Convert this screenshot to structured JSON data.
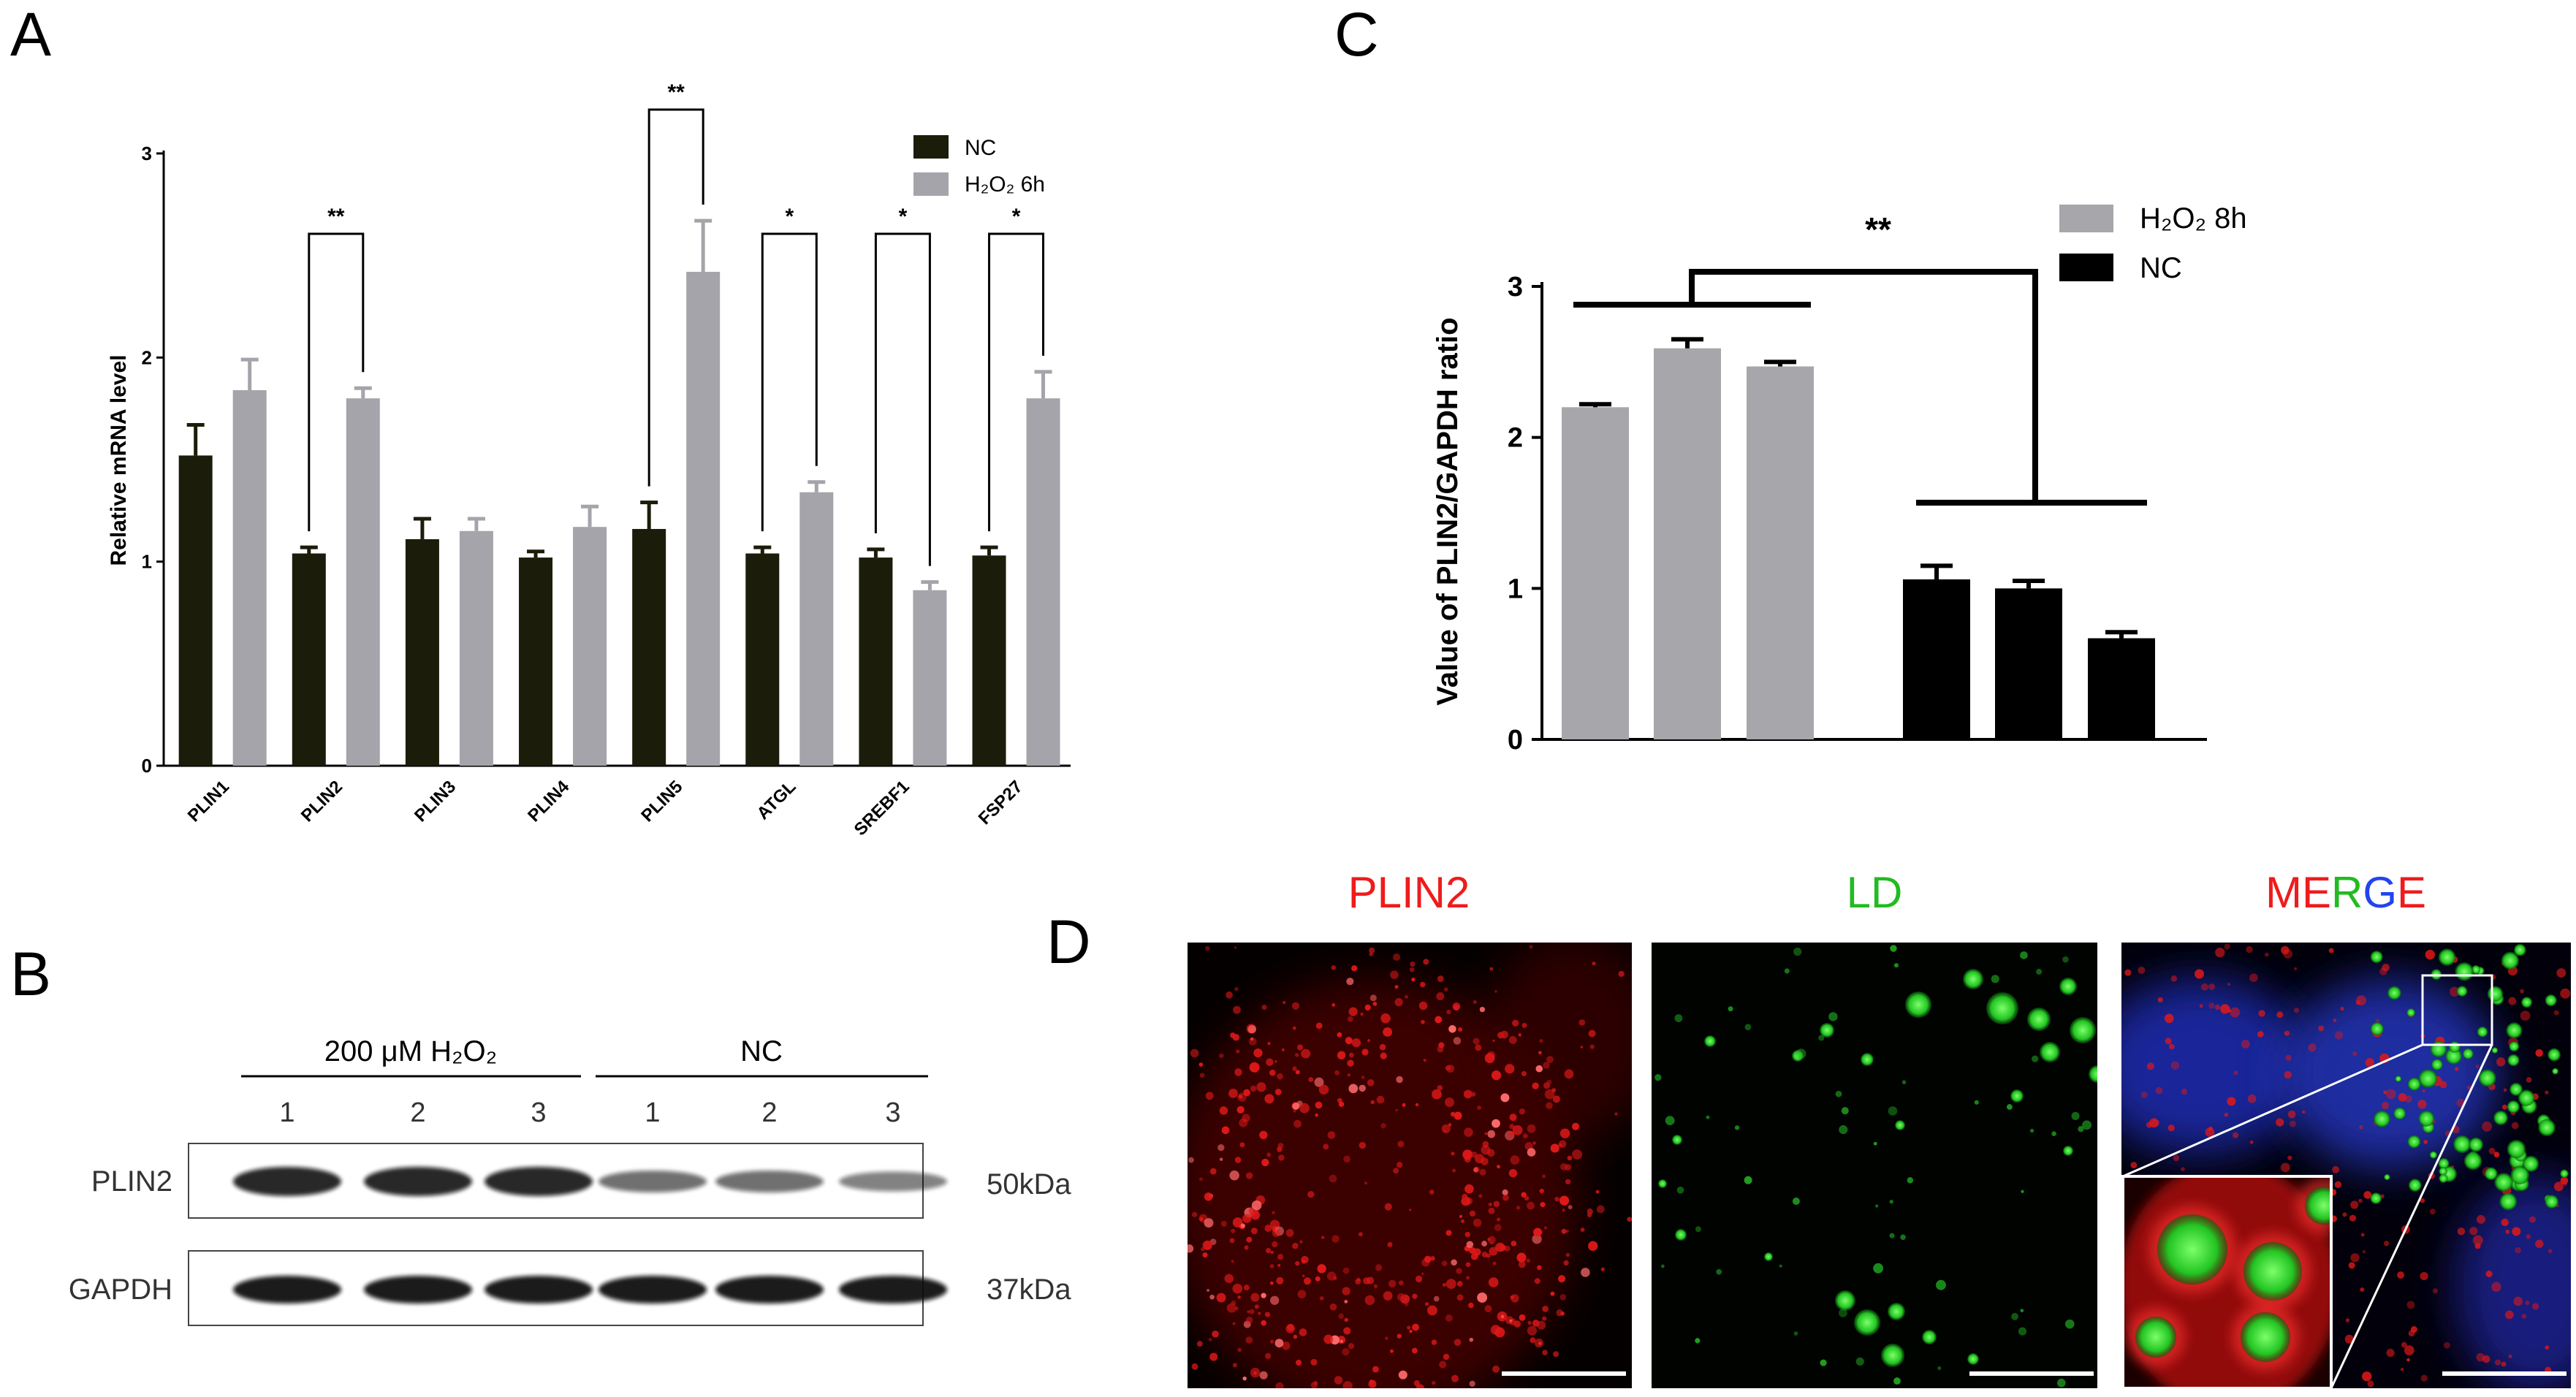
{
  "panels": {
    "a": "A",
    "b": "B",
    "c": "C",
    "d": "D"
  },
  "chart_data": [
    {
      "type": "bar",
      "panel": "A",
      "ylabel": "Relative mRNA level",
      "ylim": [
        0,
        3
      ],
      "yticks": [
        "0",
        "1",
        "2",
        "3"
      ],
      "categories": [
        "PLIN1",
        "PLIN2",
        "PLIN3",
        "PLIN4",
        "PLIN5",
        "ATGL",
        "SREBF1",
        "FSP27"
      ],
      "series": [
        {
          "name": "NC",
          "color": "#1c1c0a",
          "values": [
            1.52,
            1.04,
            1.11,
            1.02,
            1.16,
            1.04,
            1.02,
            1.03
          ],
          "errors": [
            0.15,
            0.03,
            0.1,
            0.03,
            0.13,
            0.03,
            0.04,
            0.04
          ]
        },
        {
          "name": "H₂O₂ 6h",
          "color": "#a4a4aa",
          "values": [
            1.84,
            1.8,
            1.15,
            1.17,
            2.42,
            1.34,
            0.86,
            1.8
          ],
          "errors": [
            0.15,
            0.05,
            0.06,
            0.1,
            0.25,
            0.05,
            0.04,
            0.13
          ]
        }
      ],
      "significance": [
        "",
        "**",
        "",
        "",
        "**",
        "*",
        "*",
        "*"
      ],
      "legend_position": "top-right"
    },
    {
      "type": "bar",
      "panel": "C",
      "ylabel": "Value of PLIN2/GAPDH ratio",
      "ylim": [
        0,
        3
      ],
      "yticks": [
        "0",
        "1",
        "2",
        "3"
      ],
      "series": [
        {
          "name": "H₂O₂ 8h",
          "color": "#a6a6ab",
          "values": [
            2.2,
            2.59,
            2.47
          ],
          "errors": [
            0.02,
            0.06,
            0.03
          ]
        },
        {
          "name": "NC",
          "color": "#000000",
          "values": [
            1.06,
            1.0,
            0.67
          ],
          "errors": [
            0.09,
            0.05,
            0.04
          ]
        }
      ],
      "significance": "**",
      "legend_position": "top-right"
    }
  ],
  "blot": {
    "groups": [
      {
        "label": "200 μM H₂O₂",
        "lanes": [
          "1",
          "2",
          "3"
        ]
      },
      {
        "label": "NC",
        "lanes": [
          "1",
          "2",
          "3"
        ]
      }
    ],
    "rows": [
      {
        "name": "PLIN2",
        "size": "50kDa",
        "intensity": [
          0.85,
          0.85,
          0.85,
          0.45,
          0.45,
          0.35
        ]
      },
      {
        "name": "GAPDH",
        "size": "37kDa",
        "intensity": [
          0.92,
          0.92,
          0.92,
          0.92,
          0.92,
          0.92
        ]
      }
    ]
  },
  "microscopy": {
    "channels": [
      {
        "label": "PLIN2",
        "color": "#ee1c1c"
      },
      {
        "label": "LD",
        "color": "#22bb22"
      },
      {
        "label": "MERGE",
        "letters": [
          {
            "t": "M",
            "c": "#ee1c1c"
          },
          {
            "t": "E",
            "c": "#ee1c1c"
          },
          {
            "t": "R",
            "c": "#22bb22"
          },
          {
            "t": "G",
            "c": "#2244ee"
          },
          {
            "t": "E",
            "c": "#ee1c1c"
          }
        ]
      }
    ]
  }
}
